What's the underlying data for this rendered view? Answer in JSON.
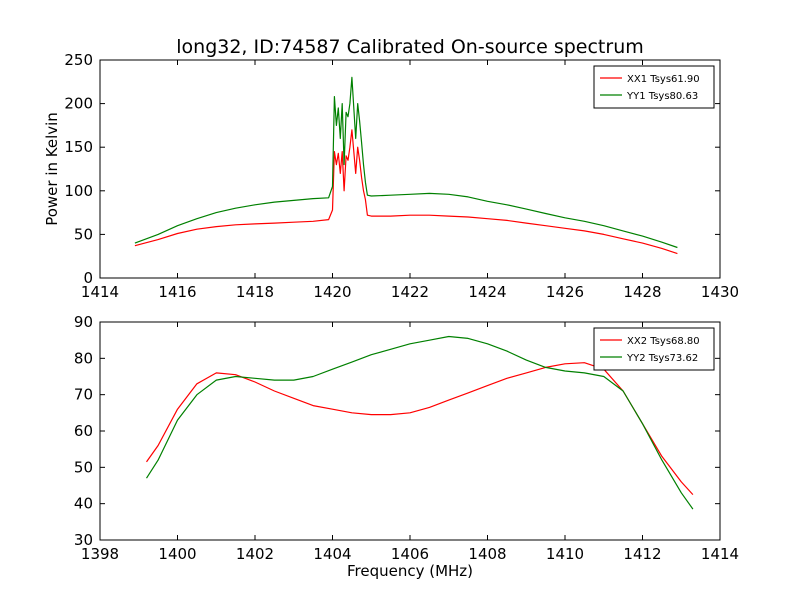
{
  "title": "long32, ID:74587 Calibrated On-source spectrum",
  "chart_data": [
    {
      "type": "line",
      "xlabel": "",
      "ylabel": "Power in Kelvin",
      "xlim": [
        1414,
        1430
      ],
      "ylim": [
        0,
        250
      ],
      "xticks": [
        1414,
        1416,
        1418,
        1420,
        1422,
        1424,
        1426,
        1428,
        1430
      ],
      "yticks": [
        0,
        50,
        100,
        150,
        200,
        250
      ],
      "legend_position": "top-right",
      "series": [
        {
          "name": "XX1 Tsys61.90",
          "color": "#ff0000",
          "x": [
            1414.9,
            1415.5,
            1416.0,
            1416.5,
            1417.0,
            1417.5,
            1418.0,
            1418.5,
            1419.0,
            1419.5,
            1419.9,
            1420.0,
            1420.05,
            1420.1,
            1420.15,
            1420.2,
            1420.25,
            1420.3,
            1420.35,
            1420.4,
            1420.45,
            1420.5,
            1420.55,
            1420.6,
            1420.65,
            1420.7,
            1420.75,
            1420.8,
            1420.85,
            1420.9,
            1421.0,
            1421.5,
            1422.0,
            1422.5,
            1423.0,
            1423.5,
            1424.0,
            1424.5,
            1425.0,
            1425.5,
            1426.0,
            1426.5,
            1427.0,
            1427.5,
            1428.0,
            1428.5,
            1428.9
          ],
          "y": [
            37,
            44,
            51,
            56,
            59,
            61,
            62,
            63,
            64,
            65,
            67,
            78,
            145,
            130,
            143,
            120,
            145,
            100,
            140,
            135,
            150,
            170,
            145,
            120,
            150,
            135,
            115,
            100,
            90,
            72,
            71,
            71,
            72,
            72,
            71,
            70,
            68,
            66,
            63,
            60,
            57,
            54,
            50,
            45,
            40,
            34,
            28
          ]
        },
        {
          "name": "YY1 Tsys80.63",
          "color": "#008000",
          "x": [
            1414.9,
            1415.5,
            1416.0,
            1416.5,
            1417.0,
            1417.5,
            1418.0,
            1418.5,
            1419.0,
            1419.5,
            1419.9,
            1420.0,
            1420.05,
            1420.1,
            1420.15,
            1420.2,
            1420.25,
            1420.3,
            1420.35,
            1420.4,
            1420.45,
            1420.5,
            1420.55,
            1420.6,
            1420.65,
            1420.7,
            1420.75,
            1420.8,
            1420.85,
            1420.9,
            1421.0,
            1421.5,
            1422.0,
            1422.5,
            1423.0,
            1423.5,
            1424.0,
            1424.5,
            1425.0,
            1425.5,
            1426.0,
            1426.5,
            1427.0,
            1427.5,
            1428.0,
            1428.5,
            1428.9
          ],
          "y": [
            40,
            50,
            60,
            68,
            75,
            80,
            84,
            87,
            89,
            91,
            92,
            105,
            208,
            175,
            195,
            160,
            200,
            130,
            190,
            185,
            200,
            230,
            195,
            160,
            200,
            180,
            155,
            130,
            110,
            95,
            94,
            95,
            96,
            97,
            96,
            93,
            88,
            84,
            79,
            74,
            69,
            65,
            60,
            54,
            48,
            41,
            35
          ]
        }
      ]
    },
    {
      "type": "line",
      "xlabel": "Frequency (MHz)",
      "ylabel": "",
      "xlim": [
        1398,
        1414
      ],
      "ylim": [
        30,
        90
      ],
      "xticks": [
        1398,
        1400,
        1402,
        1404,
        1406,
        1408,
        1410,
        1412,
        1414
      ],
      "yticks": [
        30,
        40,
        50,
        60,
        70,
        80,
        90
      ],
      "legend_position": "top-right",
      "series": [
        {
          "name": "XX2 Tsys68.80",
          "color": "#ff0000",
          "x": [
            1399.2,
            1399.5,
            1400.0,
            1400.5,
            1401.0,
            1401.5,
            1402.0,
            1402.5,
            1403.0,
            1403.5,
            1404.0,
            1404.5,
            1405.0,
            1405.5,
            1406.0,
            1406.5,
            1407.0,
            1407.5,
            1408.0,
            1408.5,
            1409.0,
            1409.5,
            1410.0,
            1410.5,
            1411.0,
            1411.5,
            1412.0,
            1412.5,
            1413.0,
            1413.3
          ],
          "y": [
            51.5,
            56,
            66,
            73,
            76,
            75.5,
            73.5,
            71,
            69,
            67,
            66,
            65,
            64.5,
            64.5,
            65,
            66.5,
            68.5,
            70.5,
            72.5,
            74.5,
            76,
            77.5,
            78.5,
            78.8,
            77,
            71,
            62,
            53,
            46,
            42.5
          ]
        },
        {
          "name": "YY2 Tsys73.62",
          "color": "#008000",
          "x": [
            1399.2,
            1399.5,
            1400.0,
            1400.5,
            1401.0,
            1401.5,
            1402.0,
            1402.5,
            1403.0,
            1403.5,
            1404.0,
            1404.5,
            1405.0,
            1405.5,
            1406.0,
            1406.5,
            1407.0,
            1407.5,
            1408.0,
            1408.5,
            1409.0,
            1409.5,
            1410.0,
            1410.5,
            1411.0,
            1411.5,
            1412.0,
            1412.5,
            1413.0,
            1413.3
          ],
          "y": [
            47,
            52,
            63,
            70,
            74,
            75,
            74.5,
            74,
            74,
            75,
            77,
            79,
            81,
            82.5,
            84,
            85,
            86,
            85.5,
            84,
            82,
            79.5,
            77.5,
            76.5,
            76,
            75,
            71,
            62,
            52,
            43,
            38.5
          ]
        }
      ]
    }
  ]
}
